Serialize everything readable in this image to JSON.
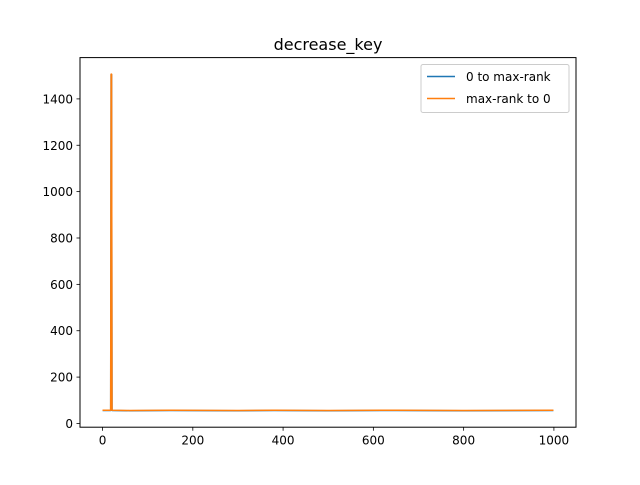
{
  "chart_data": {
    "type": "line",
    "title": "decrease_key",
    "xlabel": "",
    "ylabel": "",
    "xlim": [
      -49.95,
      1048.95
    ],
    "ylim": [
      -16.1,
      1578.1
    ],
    "xticks": [
      0,
      200,
      400,
      600,
      800,
      1000
    ],
    "yticks": [
      0,
      200,
      400,
      600,
      800,
      1000,
      1200,
      1400
    ],
    "grid": false,
    "legend_position": "top-right",
    "series": [
      {
        "name": "0 to max-rank",
        "color": "#1f77b4",
        "x": [
          0,
          18,
          19,
          20,
          21,
          60,
          150,
          300,
          380,
          500,
          650,
          800,
          999
        ],
        "y": [
          56,
          56,
          1505,
          1505,
          56,
          55,
          56,
          55,
          56,
          55,
          56,
          55,
          56
        ]
      },
      {
        "name": "max-rank to 0",
        "color": "#ff7f0e",
        "x": [
          0,
          18,
          19,
          20,
          21,
          60,
          150,
          300,
          380,
          500,
          650,
          800,
          999
        ],
        "y": [
          57,
          57,
          1507,
          1507,
          57,
          56,
          57,
          56,
          57,
          56,
          57,
          56,
          57
        ]
      }
    ]
  }
}
